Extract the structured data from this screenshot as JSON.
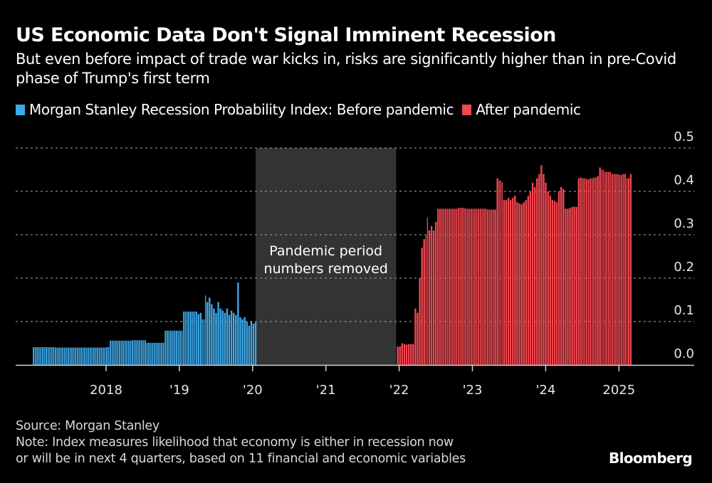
{
  "header": {
    "title": "US Economic Data Don't Signal Imminent Recession",
    "subtitle": "But even before impact of trade war kicks in, risks are significantly higher than in pre-Covid phase of Trump's first term"
  },
  "legend": [
    {
      "label": "Morgan Stanley Recession Probability Index: Before pandemic",
      "color": "#3ea9e8"
    },
    {
      "label": "After pandemic",
      "color": "#f2464f"
    }
  ],
  "footer": {
    "source": "Source: Morgan Stanley",
    "note_line1": "Note: Index measures likelihood that economy is either in recession now",
    "note_line2": "or will be in next 4 quarters, based on 11 financial and economic variables",
    "brand": "Bloomberg"
  },
  "chart_data": {
    "type": "bar",
    "title": "US Economic Data Don't Signal Imminent Recession",
    "xlabel": "",
    "ylabel": "",
    "ylim": [
      0,
      0.5
    ],
    "xlim": [
      2017.0,
      2025.9
    ],
    "grid": true,
    "y_axis_side": "right",
    "y_ticks": [
      "0.0",
      "0.1",
      "0.2",
      "0.3",
      "0.4",
      "0.5"
    ],
    "x_ticks": [
      {
        "x": 2018,
        "label": "2018"
      },
      {
        "x": 2019,
        "label": "'19"
      },
      {
        "x": 2020,
        "label": "'20"
      },
      {
        "x": 2021,
        "label": "'21"
      },
      {
        "x": 2022,
        "label": "'22"
      },
      {
        "x": 2023,
        "label": "'23"
      },
      {
        "x": 2024,
        "label": "'24"
      },
      {
        "x": 2025,
        "label": "2025"
      }
    ],
    "annotation": {
      "x_start": 2020.04,
      "x_end": 2021.96,
      "text_line1": "Pandemic period",
      "text_line2": "numbers removed",
      "color": "#333333"
    },
    "series": [
      {
        "name": "Before pandemic",
        "color": "#3ea9e8",
        "points": [
          [
            2017.0,
            0.041
          ],
          [
            2017.1,
            0.041
          ],
          [
            2017.2,
            0.041
          ],
          [
            2017.3,
            0.04
          ],
          [
            2017.4,
            0.04
          ],
          [
            2017.5,
            0.04
          ],
          [
            2017.6,
            0.04
          ],
          [
            2017.7,
            0.04
          ],
          [
            2017.8,
            0.04
          ],
          [
            2017.9,
            0.04
          ],
          [
            2018.0,
            0.041
          ],
          [
            2018.05,
            0.056
          ],
          [
            2018.15,
            0.056
          ],
          [
            2018.25,
            0.056
          ],
          [
            2018.35,
            0.057
          ],
          [
            2018.45,
            0.057
          ],
          [
            2018.55,
            0.051
          ],
          [
            2018.65,
            0.051
          ],
          [
            2018.75,
            0.051
          ],
          [
            2018.8,
            0.079
          ],
          [
            2018.9,
            0.079
          ],
          [
            2018.98,
            0.079
          ],
          [
            2019.05,
            0.123
          ],
          [
            2019.12,
            0.123
          ],
          [
            2019.2,
            0.123
          ],
          [
            2019.25,
            0.117
          ],
          [
            2019.28,
            0.12
          ],
          [
            2019.31,
            0.105
          ],
          [
            2019.35,
            0.16
          ],
          [
            2019.37,
            0.145
          ],
          [
            2019.4,
            0.155
          ],
          [
            2019.43,
            0.14
          ],
          [
            2019.46,
            0.13
          ],
          [
            2019.49,
            0.12
          ],
          [
            2019.52,
            0.145
          ],
          [
            2019.55,
            0.13
          ],
          [
            2019.58,
            0.125
          ],
          [
            2019.61,
            0.12
          ],
          [
            2019.64,
            0.13
          ],
          [
            2019.67,
            0.115
          ],
          [
            2019.7,
            0.125
          ],
          [
            2019.73,
            0.12
          ],
          [
            2019.76,
            0.115
          ],
          [
            2019.79,
            0.19
          ],
          [
            2019.82,
            0.11
          ],
          [
            2019.85,
            0.105
          ],
          [
            2019.88,
            0.11
          ],
          [
            2019.91,
            0.1
          ],
          [
            2019.94,
            0.09
          ],
          [
            2019.97,
            0.1
          ],
          [
            2020.0,
            0.095
          ],
          [
            2020.03,
            0.098
          ]
        ]
      },
      {
        "name": "After pandemic",
        "color": "#f2464f",
        "points": [
          [
            2021.97,
            0.042
          ],
          [
            2022.0,
            0.043
          ],
          [
            2022.03,
            0.05
          ],
          [
            2022.06,
            0.048
          ],
          [
            2022.09,
            0.047
          ],
          [
            2022.12,
            0.048
          ],
          [
            2022.15,
            0.048
          ],
          [
            2022.18,
            0.048
          ],
          [
            2022.21,
            0.13
          ],
          [
            2022.24,
            0.12
          ],
          [
            2022.27,
            0.2
          ],
          [
            2022.3,
            0.27
          ],
          [
            2022.33,
            0.29
          ],
          [
            2022.36,
            0.3
          ],
          [
            2022.38,
            0.34
          ],
          [
            2022.4,
            0.31
          ],
          [
            2022.43,
            0.32
          ],
          [
            2022.46,
            0.31
          ],
          [
            2022.49,
            0.33
          ],
          [
            2022.52,
            0.36
          ],
          [
            2022.6,
            0.36
          ],
          [
            2022.7,
            0.36
          ],
          [
            2022.8,
            0.362
          ],
          [
            2022.9,
            0.36
          ],
          [
            2023.0,
            0.36
          ],
          [
            2023.1,
            0.36
          ],
          [
            2023.2,
            0.358
          ],
          [
            2023.3,
            0.358
          ],
          [
            2023.33,
            0.43
          ],
          [
            2023.36,
            0.425
          ],
          [
            2023.4,
            0.42
          ],
          [
            2023.42,
            0.38
          ],
          [
            2023.45,
            0.38
          ],
          [
            2023.48,
            0.385
          ],
          [
            2023.51,
            0.38
          ],
          [
            2023.54,
            0.385
          ],
          [
            2023.57,
            0.39
          ],
          [
            2023.6,
            0.375
          ],
          [
            2023.63,
            0.372
          ],
          [
            2023.66,
            0.37
          ],
          [
            2023.69,
            0.375
          ],
          [
            2023.72,
            0.38
          ],
          [
            2023.75,
            0.39
          ],
          [
            2023.78,
            0.4
          ],
          [
            2023.81,
            0.42
          ],
          [
            2023.84,
            0.41
          ],
          [
            2023.87,
            0.43
          ],
          [
            2023.9,
            0.44
          ],
          [
            2023.93,
            0.46
          ],
          [
            2023.96,
            0.44
          ],
          [
            2023.99,
            0.42
          ],
          [
            2024.02,
            0.4
          ],
          [
            2024.05,
            0.39
          ],
          [
            2024.08,
            0.38
          ],
          [
            2024.11,
            0.378
          ],
          [
            2024.14,
            0.375
          ],
          [
            2024.17,
            0.4
          ],
          [
            2024.2,
            0.41
          ],
          [
            2024.23,
            0.405
          ],
          [
            2024.26,
            0.36
          ],
          [
            2024.29,
            0.36
          ],
          [
            2024.32,
            0.362
          ],
          [
            2024.35,
            0.364
          ],
          [
            2024.38,
            0.365
          ],
          [
            2024.41,
            0.364
          ],
          [
            2024.44,
            0.43
          ],
          [
            2024.47,
            0.432
          ],
          [
            2024.5,
            0.43
          ],
          [
            2024.55,
            0.428
          ],
          [
            2024.6,
            0.43
          ],
          [
            2024.65,
            0.432
          ],
          [
            2024.7,
            0.435
          ],
          [
            2024.73,
            0.455
          ],
          [
            2024.76,
            0.45
          ],
          [
            2024.8,
            0.445
          ],
          [
            2024.85,
            0.445
          ],
          [
            2024.9,
            0.44
          ],
          [
            2024.95,
            0.44
          ],
          [
            2025.0,
            0.438
          ],
          [
            2025.05,
            0.44
          ],
          [
            2025.1,
            0.43
          ],
          [
            2025.12,
            0.43
          ],
          [
            2025.15,
            0.44
          ]
        ]
      }
    ]
  }
}
